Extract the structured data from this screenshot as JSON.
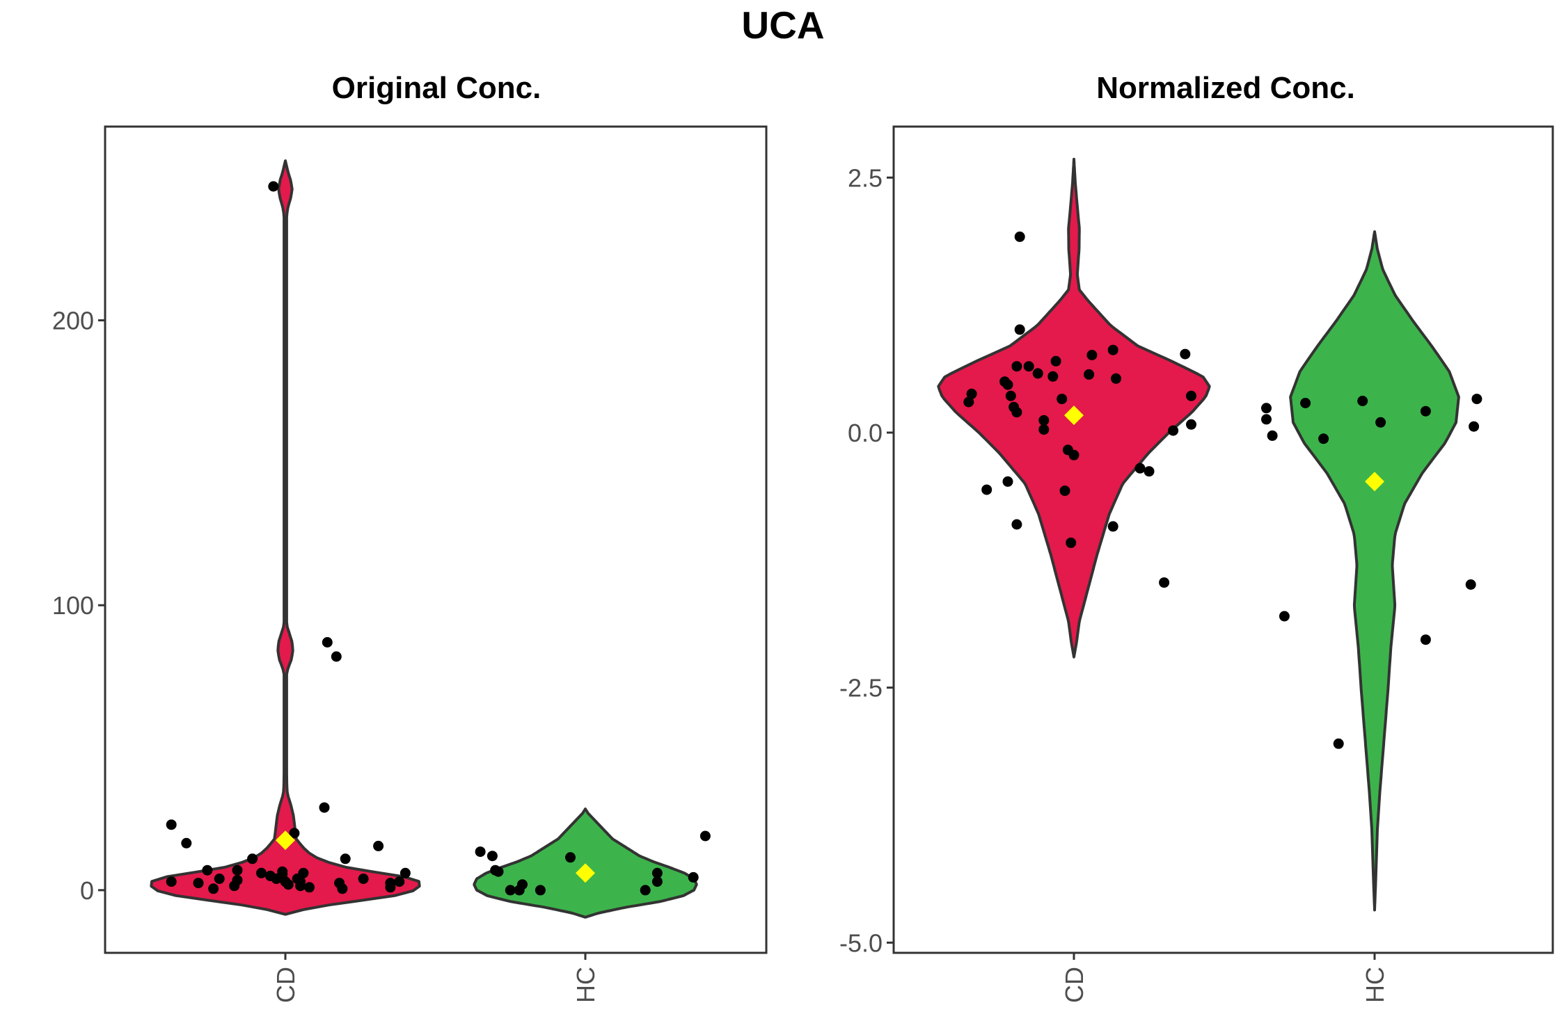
{
  "figure": {
    "title": "UCA"
  },
  "colors": {
    "CD": "#e31a4b",
    "HC": "#3cb44b",
    "mean_marker": "#ffff00",
    "points": "#000000",
    "outline": "#333333"
  },
  "chart_data": [
    {
      "type": "violin",
      "title": "Original Conc.",
      "xlabel": "",
      "ylabel": "",
      "categories": [
        "CD",
        "HC"
      ],
      "ylim": [
        -22,
        268
      ],
      "yticks": [
        0,
        100,
        200
      ],
      "ytick_labels": [
        "0",
        "100",
        "200"
      ],
      "grid": false,
      "legend": "none",
      "violins": [
        {
          "group": "CD",
          "range": [
            -8.5,
            256
          ],
          "profile": [
            [
              -8.5,
              0.0
            ],
            [
              -6,
              0.2
            ],
            [
              -4,
              0.5
            ],
            [
              -2,
              0.8
            ],
            [
              0,
              0.96
            ],
            [
              2,
              1.0
            ],
            [
              4,
              0.97
            ],
            [
              6,
              0.7
            ],
            [
              8,
              0.45
            ],
            [
              10,
              0.3
            ],
            [
              12,
              0.2
            ],
            [
              15,
              0.13
            ],
            [
              18,
              0.08
            ],
            [
              22,
              0.07
            ],
            [
              26,
              0.06
            ],
            [
              30,
              0.04
            ],
            [
              33,
              0.02
            ],
            [
              35,
              0.012
            ],
            [
              40,
              0.01
            ],
            [
              60,
              0.01
            ],
            [
              76,
              0.01
            ],
            [
              78,
              0.02
            ],
            [
              81,
              0.045
            ],
            [
              84,
              0.055
            ],
            [
              87,
              0.05
            ],
            [
              90,
              0.03
            ],
            [
              93,
              0.01
            ],
            [
              100,
              0.01
            ],
            [
              150,
              0.01
            ],
            [
              237,
              0.01
            ],
            [
              240,
              0.02
            ],
            [
              243,
              0.04
            ],
            [
              246,
              0.05
            ],
            [
              249,
              0.04
            ],
            [
              252,
              0.02
            ],
            [
              256,
              0.0
            ]
          ]
        },
        {
          "group": "HC",
          "range": [
            -9.5,
            28.5
          ],
          "profile": [
            [
              -9.5,
              0.0
            ],
            [
              -8,
              0.1
            ],
            [
              -6,
              0.3
            ],
            [
              -4,
              0.55
            ],
            [
              -2,
              0.72
            ],
            [
              0,
              0.8
            ],
            [
              2,
              0.82
            ],
            [
              4,
              0.8
            ],
            [
              6,
              0.73
            ],
            [
              8,
              0.62
            ],
            [
              10,
              0.5
            ],
            [
              12,
              0.4
            ],
            [
              15,
              0.3
            ],
            [
              18,
              0.2
            ],
            [
              22,
              0.12
            ],
            [
              25,
              0.06
            ],
            [
              27,
              0.02
            ],
            [
              28.5,
              0.0
            ]
          ]
        }
      ],
      "means": [
        {
          "group": "CD",
          "value": 17.5
        },
        {
          "group": "HC",
          "value": 6.0
        }
      ],
      "points": [
        {
          "group": "CD",
          "dx": -0.38,
          "y": 23
        },
        {
          "group": "CD",
          "dx": -0.33,
          "y": 16.5
        },
        {
          "group": "CD",
          "dx": -0.38,
          "y": 3
        },
        {
          "group": "CD",
          "dx": -0.29,
          "y": 2.5
        },
        {
          "group": "CD",
          "dx": -0.26,
          "y": 7
        },
        {
          "group": "CD",
          "dx": -0.24,
          "y": 0.5
        },
        {
          "group": "CD",
          "dx": -0.22,
          "y": 4
        },
        {
          "group": "CD",
          "dx": -0.17,
          "y": 1.5
        },
        {
          "group": "CD",
          "dx": -0.16,
          "y": 3.5
        },
        {
          "group": "CD",
          "dx": -0.16,
          "y": 7
        },
        {
          "group": "CD",
          "dx": -0.11,
          "y": 11
        },
        {
          "group": "CD",
          "dx": -0.08,
          "y": 6
        },
        {
          "group": "CD",
          "dx": -0.05,
          "y": 5
        },
        {
          "group": "CD",
          "dx": -0.03,
          "y": 4
        },
        {
          "group": "CD",
          "dx": -0.01,
          "y": 5.5
        },
        {
          "group": "CD",
          "dx": 0.0,
          "y": 3
        },
        {
          "group": "CD",
          "dx": -0.01,
          "y": 6.5
        },
        {
          "group": "CD",
          "dx": 0.01,
          "y": 2
        },
        {
          "group": "CD",
          "dx": 0.03,
          "y": 20
        },
        {
          "group": "CD",
          "dx": 0.04,
          "y": 4
        },
        {
          "group": "CD",
          "dx": 0.05,
          "y": 3
        },
        {
          "group": "CD",
          "dx": 0.05,
          "y": 1.5
        },
        {
          "group": "CD",
          "dx": 0.06,
          "y": 6
        },
        {
          "group": "CD",
          "dx": 0.08,
          "y": 1
        },
        {
          "group": "CD",
          "dx": 0.13,
          "y": 29
        },
        {
          "group": "CD",
          "dx": 0.18,
          "y": 2.5
        },
        {
          "group": "CD",
          "dx": 0.19,
          "y": 0.5
        },
        {
          "group": "CD",
          "dx": 0.2,
          "y": 11
        },
        {
          "group": "CD",
          "dx": 0.26,
          "y": 4
        },
        {
          "group": "CD",
          "dx": 0.31,
          "y": 15.5
        },
        {
          "group": "CD",
          "dx": 0.35,
          "y": 1
        },
        {
          "group": "CD",
          "dx": 0.35,
          "y": 2.5
        },
        {
          "group": "CD",
          "dx": 0.38,
          "y": 3
        },
        {
          "group": "CD",
          "dx": 0.4,
          "y": 6
        },
        {
          "group": "CD",
          "dx": -0.04,
          "y": 247
        },
        {
          "group": "CD",
          "dx": 0.14,
          "y": 87
        },
        {
          "group": "CD",
          "dx": 0.17,
          "y": 82
        },
        {
          "group": "HC",
          "dx": -0.35,
          "y": 13.5
        },
        {
          "group": "HC",
          "dx": -0.31,
          "y": 12
        },
        {
          "group": "HC",
          "dx": -0.3,
          "y": 7
        },
        {
          "group": "HC",
          "dx": -0.29,
          "y": 6.5
        },
        {
          "group": "HC",
          "dx": -0.25,
          "y": 0
        },
        {
          "group": "HC",
          "dx": -0.22,
          "y": 0
        },
        {
          "group": "HC",
          "dx": -0.21,
          "y": 2
        },
        {
          "group": "HC",
          "dx": -0.15,
          "y": 0
        },
        {
          "group": "HC",
          "dx": -0.05,
          "y": 11.5
        },
        {
          "group": "HC",
          "dx": 0.2,
          "y": 0
        },
        {
          "group": "HC",
          "dx": 0.24,
          "y": 3
        },
        {
          "group": "HC",
          "dx": 0.24,
          "y": 6
        },
        {
          "group": "HC",
          "dx": 0.36,
          "y": 4.5
        },
        {
          "group": "HC",
          "dx": 0.4,
          "y": 19
        }
      ]
    },
    {
      "type": "violin",
      "title": "Normalized Conc.",
      "xlabel": "",
      "ylabel": "",
      "categories": [
        "CD",
        "HC"
      ],
      "ylim": [
        -5.1,
        3.0
      ],
      "yticks": [
        -5.0,
        -2.5,
        0.0,
        2.5
      ],
      "ytick_labels": [
        "-5.0",
        "-2.5",
        "0.0",
        "2.5"
      ],
      "grid": false,
      "legend": "none",
      "violins": [
        {
          "group": "CD",
          "range": [
            -2.2,
            2.68
          ],
          "profile": [
            [
              -2.2,
              0.0
            ],
            [
              -2.05,
              0.02
            ],
            [
              -1.85,
              0.04
            ],
            [
              -1.6,
              0.09
            ],
            [
              -1.2,
              0.17
            ],
            [
              -0.8,
              0.26
            ],
            [
              -0.5,
              0.36
            ],
            [
              -0.2,
              0.55
            ],
            [
              0.0,
              0.7
            ],
            [
              0.2,
              0.87
            ],
            [
              0.35,
              0.97
            ],
            [
              0.45,
              1.0
            ],
            [
              0.55,
              0.95
            ],
            [
              0.7,
              0.72
            ],
            [
              0.85,
              0.47
            ],
            [
              1.05,
              0.27
            ],
            [
              1.3,
              0.1
            ],
            [
              1.4,
              0.04
            ],
            [
              1.55,
              0.025
            ],
            [
              1.8,
              0.038
            ],
            [
              2.0,
              0.04
            ],
            [
              2.2,
              0.026
            ],
            [
              2.45,
              0.01
            ],
            [
              2.68,
              0.0
            ]
          ]
        },
        {
          "group": "HC",
          "range": [
            -4.68,
            1.97
          ],
          "profile": [
            [
              -4.68,
              0.0
            ],
            [
              -4.4,
              0.008
            ],
            [
              -3.9,
              0.02
            ],
            [
              -3.5,
              0.04
            ],
            [
              -3.0,
              0.07
            ],
            [
              -2.5,
              0.1
            ],
            [
              -2.1,
              0.12
            ],
            [
              -1.7,
              0.15
            ],
            [
              -1.3,
              0.13
            ],
            [
              -1.0,
              0.15
            ],
            [
              -0.7,
              0.22
            ],
            [
              -0.4,
              0.35
            ],
            [
              -0.1,
              0.52
            ],
            [
              0.1,
              0.6
            ],
            [
              0.35,
              0.62
            ],
            [
              0.6,
              0.55
            ],
            [
              0.85,
              0.42
            ],
            [
              1.1,
              0.28
            ],
            [
              1.35,
              0.15
            ],
            [
              1.6,
              0.06
            ],
            [
              1.8,
              0.02
            ],
            [
              1.97,
              0.0
            ]
          ]
        }
      ],
      "means": [
        {
          "group": "CD",
          "value": 0.17
        },
        {
          "group": "HC",
          "value": -0.48
        }
      ],
      "points": [
        {
          "group": "CD",
          "dx": -0.35,
          "y": 0.3
        },
        {
          "group": "CD",
          "dx": -0.34,
          "y": 0.38
        },
        {
          "group": "CD",
          "dx": -0.29,
          "y": -0.56
        },
        {
          "group": "CD",
          "dx": -0.23,
          "y": 0.5
        },
        {
          "group": "CD",
          "dx": -0.22,
          "y": 0.47
        },
        {
          "group": "CD",
          "dx": -0.22,
          "y": -0.48
        },
        {
          "group": "CD",
          "dx": -0.21,
          "y": 0.36
        },
        {
          "group": "CD",
          "dx": -0.2,
          "y": 0.25
        },
        {
          "group": "CD",
          "dx": -0.19,
          "y": 0.2
        },
        {
          "group": "CD",
          "dx": -0.19,
          "y": 0.65
        },
        {
          "group": "CD",
          "dx": -0.19,
          "y": -0.9
        },
        {
          "group": "CD",
          "dx": -0.18,
          "y": 1.92
        },
        {
          "group": "CD",
          "dx": -0.18,
          "y": 1.01
        },
        {
          "group": "CD",
          "dx": -0.15,
          "y": 0.65
        },
        {
          "group": "CD",
          "dx": -0.12,
          "y": 0.58
        },
        {
          "group": "CD",
          "dx": -0.1,
          "y": 0.12
        },
        {
          "group": "CD",
          "dx": -0.1,
          "y": 0.03
        },
        {
          "group": "CD",
          "dx": -0.07,
          "y": 0.55
        },
        {
          "group": "CD",
          "dx": -0.06,
          "y": 0.7
        },
        {
          "group": "CD",
          "dx": -0.04,
          "y": 0.33
        },
        {
          "group": "CD",
          "dx": -0.03,
          "y": -0.57
        },
        {
          "group": "CD",
          "dx": -0.02,
          "y": -0.17
        },
        {
          "group": "CD",
          "dx": -0.01,
          "y": -1.08
        },
        {
          "group": "CD",
          "dx": 0.0,
          "y": -0.22
        },
        {
          "group": "CD",
          "dx": 0.05,
          "y": 0.57
        },
        {
          "group": "CD",
          "dx": 0.06,
          "y": 0.76
        },
        {
          "group": "CD",
          "dx": 0.13,
          "y": 0.81
        },
        {
          "group": "CD",
          "dx": 0.14,
          "y": 0.53
        },
        {
          "group": "CD",
          "dx": 0.13,
          "y": -0.92
        },
        {
          "group": "CD",
          "dx": 0.22,
          "y": -0.35
        },
        {
          "group": "CD",
          "dx": 0.25,
          "y": -0.38
        },
        {
          "group": "CD",
          "dx": 0.3,
          "y": -1.47
        },
        {
          "group": "CD",
          "dx": 0.33,
          "y": 0.02
        },
        {
          "group": "CD",
          "dx": 0.37,
          "y": 0.77
        },
        {
          "group": "CD",
          "dx": 0.39,
          "y": 0.36
        },
        {
          "group": "CD",
          "dx": 0.39,
          "y": 0.08
        },
        {
          "group": "HC",
          "dx": -0.36,
          "y": 0.24
        },
        {
          "group": "HC",
          "dx": -0.36,
          "y": 0.13
        },
        {
          "group": "HC",
          "dx": -0.34,
          "y": -0.03
        },
        {
          "group": "HC",
          "dx": -0.3,
          "y": -1.8
        },
        {
          "group": "HC",
          "dx": -0.23,
          "y": 0.29
        },
        {
          "group": "HC",
          "dx": -0.17,
          "y": -0.06
        },
        {
          "group": "HC",
          "dx": -0.12,
          "y": -3.05
        },
        {
          "group": "HC",
          "dx": -0.04,
          "y": 0.31
        },
        {
          "group": "HC",
          "dx": 0.02,
          "y": 0.1
        },
        {
          "group": "HC",
          "dx": 0.17,
          "y": 0.21
        },
        {
          "group": "HC",
          "dx": 0.17,
          "y": -2.03
        },
        {
          "group": "HC",
          "dx": 0.32,
          "y": -1.49
        },
        {
          "group": "HC",
          "dx": 0.33,
          "y": 0.06
        },
        {
          "group": "HC",
          "dx": 0.34,
          "y": 0.33
        }
      ]
    }
  ]
}
